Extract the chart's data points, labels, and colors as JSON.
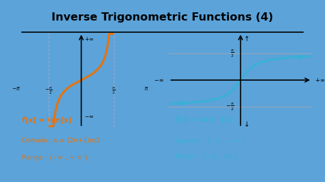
{
  "title": "Inverse Trigonometric Functions (4)",
  "bg_outer": "#5ba3d9",
  "bg_inner": "#ffffff",
  "title_color": "#000000",
  "orange_color": "#e8720c",
  "blue_color": "#3ab0d8",
  "text_color_orange": "#e8720c",
  "text_color_blue": "#3ab0d8",
  "left_line1": "f(x) = tan(x)",
  "left_line2": "Domain : x ≠ (2n+1)π/2",
  "left_line3": "Range : {- ∞ , + ∞ }",
  "right_line2": "Domain : {- ∞ , + ∞ }",
  "tan_color": "#e8720c",
  "arctan_color": "#3ab0d8",
  "axis_color": "#000000",
  "asymptote_color": "#aaaacc",
  "hline_color": "#aaaaaa"
}
